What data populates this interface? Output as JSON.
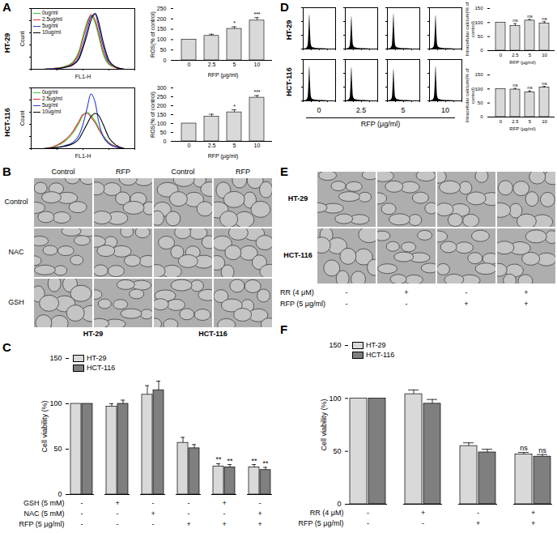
{
  "chart_data": [
    {
      "type": "line",
      "x": [
        3,
        6,
        10,
        20,
        40,
        70,
        100,
        150,
        200,
        300,
        400,
        600,
        1000,
        2000,
        4000
      ],
      "series": [
        {
          "name": "0ug/ml",
          "color": "#33cc33",
          "values": [
            0,
            1,
            2,
            5,
            12,
            30,
            55,
            80,
            88,
            75,
            55,
            25,
            8,
            2,
            0
          ]
        },
        {
          "name": "2.5ug/ml",
          "color": "#e03030",
          "values": [
            0,
            1,
            2,
            4,
            10,
            26,
            50,
            76,
            90,
            80,
            60,
            30,
            10,
            2,
            0
          ]
        },
        {
          "name": "5ug/ml",
          "color": "#2b3fd6",
          "values": [
            0,
            1,
            1,
            3,
            8,
            20,
            40,
            68,
            86,
            90,
            70,
            38,
            12,
            3,
            0
          ]
        },
        {
          "name": "10ug/ml",
          "color": "#000000",
          "values": [
            0,
            0,
            1,
            3,
            7,
            17,
            35,
            60,
            80,
            92,
            78,
            45,
            15,
            3,
            0
          ]
        }
      ],
      "xlabel": "FL1-H",
      "ylabel": "Count",
      "log": "x",
      "xlim": [
        1,
        10000
      ],
      "xticks": [
        1,
        10,
        100,
        1000,
        10000
      ],
      "ylim": [
        0,
        100
      ],
      "yticks": [
        0,
        20,
        40,
        60,
        80,
        100
      ],
      "tick_labels": false,
      "legend": "top-left"
    },
    {
      "type": "line",
      "x": [
        3,
        6,
        10,
        20,
        40,
        70,
        100,
        150,
        200,
        300,
        400,
        600,
        1000,
        2000,
        4000
      ],
      "series": [
        {
          "name": "0ug/ml",
          "color": "#33cc33",
          "values": [
            0,
            2,
            5,
            12,
            25,
            42,
            55,
            60,
            55,
            45,
            35,
            22,
            10,
            3,
            0
          ]
        },
        {
          "name": "2.5ug/ml",
          "color": "#e03030",
          "values": [
            0,
            2,
            6,
            14,
            28,
            45,
            56,
            58,
            52,
            42,
            32,
            20,
            9,
            3,
            0
          ]
        },
        {
          "name": "5ug/ml",
          "color": "#2b3fd6",
          "values": [
            0,
            1,
            2,
            5,
            10,
            22,
            40,
            70,
            90,
            75,
            45,
            20,
            8,
            2,
            0
          ]
        },
        {
          "name": "10ug/ml",
          "color": "#000000",
          "values": [
            0,
            1,
            2,
            4,
            8,
            16,
            28,
            42,
            52,
            58,
            55,
            40,
            18,
            5,
            0
          ]
        }
      ],
      "xlabel": "FL1-H",
      "ylabel": "Count",
      "log": "x",
      "xlim": [
        1,
        10000
      ],
      "xticks": [
        1,
        10,
        100,
        1000,
        10000
      ],
      "ylim": [
        0,
        100
      ],
      "yticks": [
        0,
        20,
        40,
        60,
        80,
        100
      ],
      "tick_labels": false,
      "legend": "top-left"
    },
    {
      "type": "bar",
      "categories": [
        "0",
        "2.5",
        "5",
        "10"
      ],
      "values": [
        100,
        118,
        152,
        192
      ],
      "errors": [
        0,
        8,
        10,
        14
      ],
      "xlabel": "RFP (μg/ml)",
      "ylabel": "ROS(% of control)",
      "ylim": [
        0,
        250
      ],
      "yticks": [
        0,
        50,
        100,
        150,
        200,
        250
      ],
      "color": "#d9d9d9",
      "annotations": [
        {
          "index": 2,
          "text": "*"
        },
        {
          "index": 3,
          "text": "***"
        }
      ]
    },
    {
      "type": "bar",
      "categories": [
        "0",
        "2.5",
        "5",
        "10"
      ],
      "values": [
        100,
        138,
        163,
        245
      ],
      "errors": [
        0,
        14,
        14,
        12
      ],
      "xlabel": "RFP (μg/ml)",
      "ylabel": "ROS(% of control)",
      "ylim": [
        0,
        300
      ],
      "yticks": [
        0,
        50,
        100,
        150,
        200,
        250,
        300
      ],
      "color": "#d9d9d9",
      "annotations": [
        {
          "index": 2,
          "text": "*"
        },
        {
          "index": 3,
          "text": "***"
        }
      ]
    },
    {
      "type": "area",
      "x": [
        0,
        100,
        150,
        180,
        200,
        220,
        250,
        300,
        400,
        600,
        800,
        1000
      ],
      "values": [
        0,
        2,
        10,
        60,
        100,
        55,
        12,
        4,
        2,
        1,
        0,
        0
      ],
      "color": "#000000",
      "xlim": [
        0,
        1000
      ],
      "xticks": [
        0,
        250,
        500,
        750,
        1000
      ],
      "ylim": [
        0,
        120
      ],
      "yticks": [
        0,
        40,
        80,
        120
      ],
      "tick_labels": false
    },
    {
      "type": "area",
      "x": [
        0,
        100,
        150,
        180,
        200,
        220,
        250,
        300,
        400,
        600,
        800,
        1000
      ],
      "values": [
        0,
        2,
        9,
        55,
        95,
        52,
        11,
        4,
        2,
        1,
        0,
        0
      ],
      "color": "#000000",
      "xlim": [
        0,
        1000
      ],
      "xticks": [
        0,
        250,
        500,
        750,
        1000
      ],
      "ylim": [
        0,
        120
      ],
      "yticks": [
        0,
        40,
        80,
        120
      ],
      "tick_labels": false
    },
    {
      "type": "area",
      "x": [
        0,
        100,
        150,
        180,
        200,
        220,
        250,
        300,
        400,
        600,
        800,
        1000
      ],
      "values": [
        0,
        2,
        11,
        62,
        102,
        57,
        12,
        4,
        2,
        1,
        0,
        0
      ],
      "color": "#000000",
      "xlim": [
        0,
        1000
      ],
      "xticks": [
        0,
        250,
        500,
        750,
        1000
      ],
      "ylim": [
        0,
        120
      ],
      "yticks": [
        0,
        40,
        80,
        120
      ],
      "tick_labels": false
    },
    {
      "type": "area",
      "x": [
        0,
        100,
        150,
        180,
        200,
        220,
        250,
        300,
        400,
        600,
        800,
        1000
      ],
      "values": [
        0,
        2,
        10,
        58,
        98,
        54,
        12,
        4,
        2,
        1,
        0,
        0
      ],
      "color": "#000000",
      "xlim": [
        0,
        1000
      ],
      "xticks": [
        0,
        250,
        500,
        750,
        1000
      ],
      "ylim": [
        0,
        120
      ],
      "yticks": [
        0,
        40,
        80,
        120
      ],
      "tick_labels": false
    },
    {
      "type": "area",
      "x": [
        0,
        100,
        150,
        180,
        200,
        220,
        250,
        300,
        400,
        600,
        800,
        1000
      ],
      "values": [
        0,
        2,
        10,
        60,
        100,
        56,
        12,
        4,
        2,
        1,
        0,
        0
      ],
      "color": "#000000",
      "xlim": [
        0,
        1000
      ],
      "xticks": [
        0,
        250,
        500,
        750,
        1000
      ],
      "ylim": [
        0,
        120
      ],
      "yticks": [
        0,
        40,
        80,
        120
      ],
      "tick_labels": false
    },
    {
      "type": "area",
      "x": [
        0,
        100,
        150,
        180,
        200,
        220,
        250,
        300,
        400,
        600,
        800,
        1000
      ],
      "values": [
        0,
        2,
        10,
        58,
        97,
        55,
        12,
        4,
        2,
        1,
        0,
        0
      ],
      "color": "#000000",
      "xlim": [
        0,
        1000
      ],
      "xticks": [
        0,
        250,
        500,
        750,
        1000
      ],
      "ylim": [
        0,
        120
      ],
      "yticks": [
        0,
        40,
        80,
        120
      ],
      "tick_labels": false
    },
    {
      "type": "area",
      "x": [
        0,
        100,
        150,
        180,
        200,
        220,
        250,
        300,
        400,
        600,
        800,
        1000
      ],
      "values": [
        0,
        2,
        9,
        55,
        92,
        52,
        11,
        4,
        2,
        1,
        0,
        0
      ],
      "color": "#000000",
      "xlim": [
        0,
        1000
      ],
      "xticks": [
        0,
        250,
        500,
        750,
        1000
      ],
      "ylim": [
        0,
        120
      ],
      "yticks": [
        0,
        40,
        80,
        120
      ],
      "tick_labels": false
    },
    {
      "type": "area",
      "x": [
        0,
        100,
        150,
        180,
        200,
        220,
        250,
        300,
        400,
        600,
        800,
        1000
      ],
      "values": [
        0,
        2,
        11,
        61,
        100,
        57,
        12,
        4,
        2,
        1,
        0,
        0
      ],
      "color": "#000000",
      "xlim": [
        0,
        1000
      ],
      "xticks": [
        0,
        250,
        500,
        750,
        1000
      ],
      "ylim": [
        0,
        120
      ],
      "yticks": [
        0,
        40,
        80,
        120
      ],
      "tick_labels": false
    },
    {
      "type": "bar",
      "categories": [
        "0",
        "2.5",
        "5",
        "10"
      ],
      "values": [
        100,
        88,
        107,
        97
      ],
      "errors": [
        0,
        8,
        4,
        6
      ],
      "xlabel": "RFP (μg/ml)",
      "ylabel": "Intracellular calcium(% of control)",
      "ylim": [
        0,
        150
      ],
      "yticks": [
        0,
        50,
        100,
        150
      ],
      "color": "#d9d9d9",
      "annotations": [
        {
          "index": 1,
          "text": "ns"
        },
        {
          "index": 2,
          "text": "ns"
        },
        {
          "index": 3,
          "text": "ns"
        }
      ]
    },
    {
      "type": "bar",
      "categories": [
        "0",
        "2.5",
        "5",
        "10"
      ],
      "values": [
        100,
        98,
        88,
        105
      ],
      "errors": [
        0,
        4,
        5,
        4
      ],
      "xlabel": "RFP (μg/ml)",
      "ylabel": "Intracellular calcium(% of control)",
      "ylim": [
        0,
        150
      ],
      "yticks": [
        0,
        50,
        100,
        150
      ],
      "color": "#d9d9d9",
      "annotations": [
        {
          "index": 1,
          "text": "ns"
        },
        {
          "index": 2,
          "text": "ns"
        },
        {
          "index": 3,
          "text": "ns"
        }
      ]
    },
    {
      "type": "bar",
      "categories": [
        null,
        null,
        null,
        null,
        null,
        null
      ],
      "series": [
        {
          "name": "HT-29",
          "color": "#d9d9d9",
          "values": [
            100,
            97,
            110,
            57,
            31,
            30
          ],
          "errors": [
            0,
            3,
            10,
            6,
            3,
            3
          ]
        },
        {
          "name": "HCT-116",
          "color": "#7f7f7f",
          "values": [
            100,
            100,
            115,
            51,
            30,
            27
          ],
          "errors": [
            0,
            4,
            10,
            4,
            3,
            3
          ]
        }
      ],
      "ylabel": "Cell viability (%)",
      "ylim": [
        0,
        150
      ],
      "yticks": [
        0,
        50,
        100,
        150
      ],
      "legend": "top-left",
      "conditions": [
        {
          "name": "GSH (5 mM)",
          "values": [
            "-",
            "+",
            "-",
            "-",
            "+",
            "-"
          ]
        },
        {
          "name": "NAC (5 mM)",
          "values": [
            "-",
            "-",
            "+",
            "-",
            "-",
            "+"
          ]
        },
        {
          "name": "RFP (5 μg/ml)",
          "values": [
            "-",
            "-",
            "-",
            "+",
            "+",
            "+"
          ]
        }
      ],
      "annotations": [
        {
          "index": 4,
          "series": "HT-29",
          "text": "**"
        },
        {
          "index": 4,
          "series": "HCT-116",
          "text": "**"
        },
        {
          "index": 5,
          "series": "HT-29",
          "text": "**"
        },
        {
          "index": 5,
          "series": "HCT-116",
          "text": "**"
        }
      ]
    },
    {
      "type": "bar",
      "categories": [
        null,
        null,
        null,
        null
      ],
      "series": [
        {
          "name": "HT-29",
          "color": "#d9d9d9",
          "values": [
            100,
            104,
            55,
            47
          ],
          "errors": [
            0,
            4,
            3,
            2
          ]
        },
        {
          "name": "HCT-116",
          "color": "#7f7f7f",
          "values": [
            100,
            95,
            49,
            45
          ],
          "errors": [
            0,
            4,
            3,
            2
          ]
        }
      ],
      "ylabel": "Cell viability (%)",
      "ylim": [
        0,
        150
      ],
      "yticks": [
        0,
        50,
        100,
        150
      ],
      "legend": "top-left",
      "conditions": [
        {
          "name": "RR (4 μM)",
          "values": [
            "-",
            "+",
            "-",
            "+"
          ]
        },
        {
          "name": "RFP (5 μg/ml)",
          "values": [
            "-",
            "-",
            "+",
            "+"
          ]
        }
      ],
      "annotations": [
        {
          "index": 3,
          "series": "HT-29",
          "text": "ns"
        },
        {
          "index": 3,
          "series": "HCT-116",
          "text": "ns"
        }
      ]
    }
  ],
  "panels": [
    {
      "label": "A",
      "row_labels": [
        "HT-29",
        "HCT-116"
      ]
    },
    {
      "label": "B",
      "column_labels": [
        "Control",
        "RFP",
        "Control",
        "RFP"
      ],
      "row_labels": [
        "Control",
        "NAC",
        "GSH"
      ],
      "group_labels": [
        "HT-29",
        "HCT-116"
      ]
    },
    {
      "label": "C"
    },
    {
      "label": "D",
      "row_labels": [
        "HT-29",
        "HCT-116"
      ],
      "column_labels": [
        "0",
        "2.5",
        "5",
        "10"
      ],
      "xlabel": "RFP (μg/ml)"
    },
    {
      "label": "E",
      "row_labels": [
        "HT-29",
        "HCT-116"
      ],
      "conditions": [
        {
          "name": "RR (4 μM)",
          "values": [
            "-",
            "+",
            "-",
            "+"
          ]
        },
        {
          "name": "RFP (5 μg/ml)",
          "values": [
            "-",
            "-",
            "+",
            "+"
          ]
        }
      ]
    },
    {
      "label": "F"
    }
  ]
}
